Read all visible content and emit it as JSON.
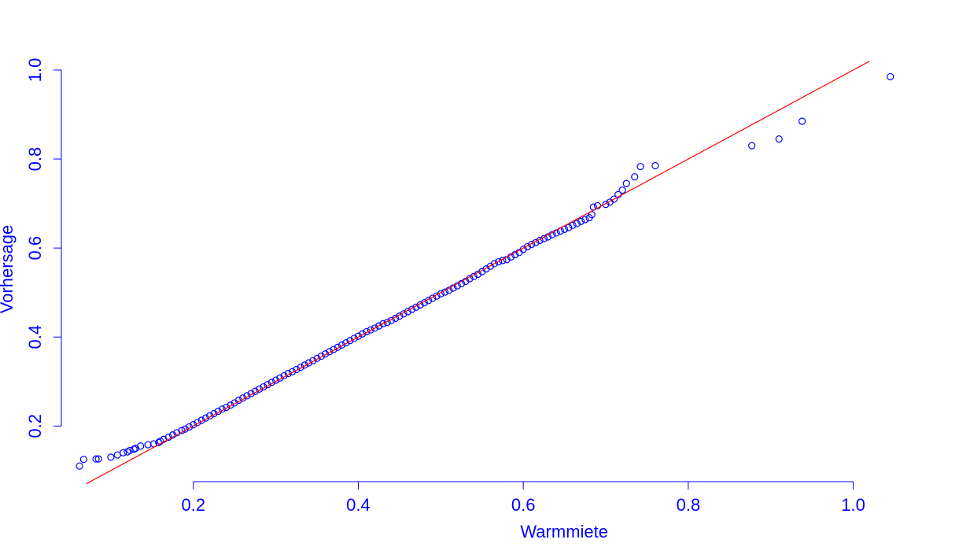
{
  "chart_data": {
    "type": "scatter",
    "title": "",
    "xlabel": "Warmmiete",
    "ylabel": "Vorhersage",
    "xlim": [
      0.04,
      1.07
    ],
    "ylim": [
      0.075,
      1.03
    ],
    "x_ticks": [
      0.2,
      0.4,
      0.6,
      0.8,
      1.0
    ],
    "x_tick_labels": [
      "0.2",
      "0.4",
      "0.6",
      "0.8",
      "1.0"
    ],
    "y_ticks": [
      0.2,
      0.4,
      0.6,
      0.8,
      1.0
    ],
    "y_tick_labels": [
      "0.2",
      "0.4",
      "0.6",
      "0.8",
      "1.0"
    ],
    "grid": false,
    "point_color": "#0000ff",
    "line_color": "#ff0000",
    "axis_color": "#0000ff",
    "reference_line": {
      "x": [
        0.07,
        1.02
      ],
      "y": [
        0.07,
        1.02
      ]
    },
    "points": {
      "x": [
        0.062,
        0.067,
        0.082,
        0.085,
        0.1,
        0.108,
        0.115,
        0.12,
        0.123,
        0.128,
        0.13,
        0.136,
        0.145,
        0.152,
        0.158,
        0.16,
        0.164,
        0.17,
        0.175,
        0.18,
        0.186,
        0.19,
        0.195,
        0.2,
        0.205,
        0.21,
        0.215,
        0.22,
        0.225,
        0.23,
        0.235,
        0.24,
        0.245,
        0.25,
        0.255,
        0.26,
        0.265,
        0.27,
        0.275,
        0.28,
        0.285,
        0.29,
        0.295,
        0.3,
        0.305,
        0.31,
        0.315,
        0.32,
        0.325,
        0.33,
        0.335,
        0.34,
        0.345,
        0.35,
        0.355,
        0.36,
        0.365,
        0.37,
        0.375,
        0.38,
        0.385,
        0.39,
        0.395,
        0.4,
        0.405,
        0.41,
        0.415,
        0.42,
        0.425,
        0.43,
        0.435,
        0.44,
        0.445,
        0.45,
        0.455,
        0.46,
        0.465,
        0.47,
        0.475,
        0.48,
        0.485,
        0.49,
        0.495,
        0.5,
        0.505,
        0.51,
        0.515,
        0.52,
        0.525,
        0.53,
        0.535,
        0.54,
        0.545,
        0.55,
        0.555,
        0.56,
        0.565,
        0.57,
        0.575,
        0.58,
        0.585,
        0.59,
        0.595,
        0.6,
        0.605,
        0.61,
        0.615,
        0.62,
        0.625,
        0.63,
        0.635,
        0.64,
        0.645,
        0.65,
        0.655,
        0.66,
        0.665,
        0.67,
        0.675,
        0.68,
        0.683,
        0.685,
        0.69,
        0.7,
        0.705,
        0.71,
        0.715,
        0.72,
        0.725,
        0.735,
        0.742,
        0.76,
        0.877,
        0.91,
        0.938,
        1.045
      ],
      "y": [
        0.11,
        0.125,
        0.126,
        0.126,
        0.13,
        0.135,
        0.14,
        0.142,
        0.145,
        0.148,
        0.15,
        0.155,
        0.158,
        0.16,
        0.163,
        0.166,
        0.17,
        0.175,
        0.18,
        0.185,
        0.19,
        0.193,
        0.198,
        0.203,
        0.208,
        0.213,
        0.218,
        0.223,
        0.228,
        0.233,
        0.238,
        0.242,
        0.247,
        0.252,
        0.258,
        0.263,
        0.268,
        0.273,
        0.278,
        0.283,
        0.288,
        0.293,
        0.298,
        0.303,
        0.308,
        0.313,
        0.318,
        0.322,
        0.327,
        0.332,
        0.337,
        0.342,
        0.347,
        0.352,
        0.357,
        0.362,
        0.367,
        0.372,
        0.377,
        0.382,
        0.387,
        0.392,
        0.397,
        0.402,
        0.407,
        0.412,
        0.416,
        0.42,
        0.425,
        0.43,
        0.433,
        0.437,
        0.442,
        0.447,
        0.452,
        0.457,
        0.462,
        0.467,
        0.472,
        0.477,
        0.482,
        0.487,
        0.492,
        0.497,
        0.501,
        0.505,
        0.51,
        0.515,
        0.52,
        0.525,
        0.531,
        0.536,
        0.541,
        0.547,
        0.553,
        0.559,
        0.565,
        0.569,
        0.572,
        0.574,
        0.58,
        0.585,
        0.59,
        0.597,
        0.603,
        0.608,
        0.612,
        0.617,
        0.621,
        0.625,
        0.63,
        0.634,
        0.638,
        0.642,
        0.646,
        0.651,
        0.655,
        0.66,
        0.664,
        0.668,
        0.675,
        0.692,
        0.695,
        0.698,
        0.703,
        0.71,
        0.72,
        0.73,
        0.745,
        0.76,
        0.783,
        0.785,
        0.83,
        0.845,
        0.885,
        0.985
      ]
    }
  }
}
